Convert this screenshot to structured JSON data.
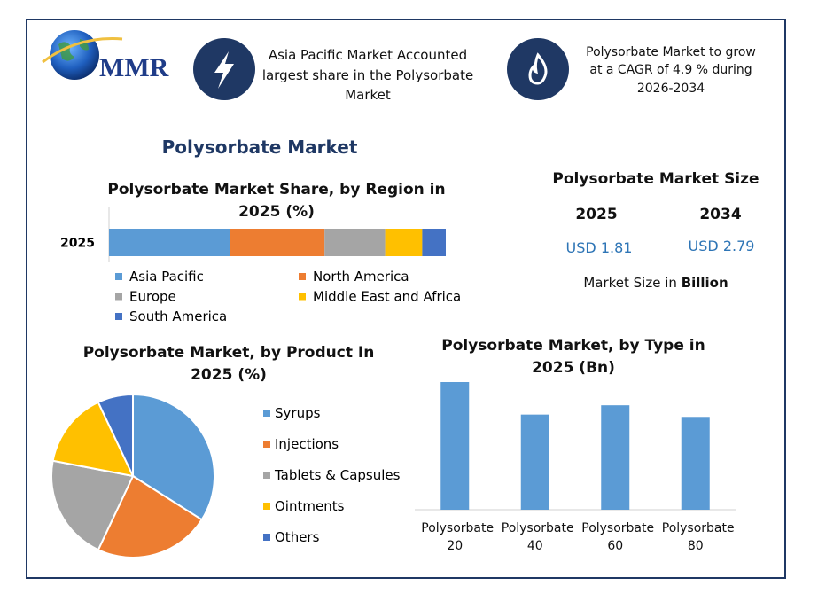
{
  "header": {
    "logo": "MMR",
    "cards": [
      {
        "text": "Asia Pacific Market Accounted largest share in the Polysorbate Market"
      },
      {
        "text": "Polysorbate Market to grow at a CAGR of 4.9 % during 2026-2034"
      }
    ]
  },
  "main_title": "Polysorbate Market",
  "market_size": {
    "title": "Polysorbate Market Size",
    "years": [
      "2025",
      "2034"
    ],
    "values": [
      "USD 1.81",
      "USD 2.79"
    ],
    "note_prefix": "Market Size in",
    "note_unit": "Billion"
  },
  "chart_data": [
    {
      "type": "stacked_bar",
      "title": "Polysorbate Market Share, by Region in 2025 (%)",
      "categories": [
        "2025"
      ],
      "legend": "bottom",
      "series": [
        {
          "name": "Asia Pacific",
          "color": "#5b9bd5",
          "values": [
            36
          ]
        },
        {
          "name": "North America",
          "color": "#ed7d31",
          "values": [
            28
          ]
        },
        {
          "name": "Europe",
          "color": "#a5a5a5",
          "values": [
            18
          ]
        },
        {
          "name": "Middle East and Africa",
          "color": "#ffc000",
          "values": [
            11
          ]
        },
        {
          "name": "South America",
          "color": "#4472c4",
          "values": [
            7
          ]
        }
      ]
    },
    {
      "type": "pie",
      "title": "Polysorbate Market, by Product In 2025 (%)",
      "categories": [
        "Syrups",
        "Injections",
        "Tablets & Capsules",
        "Ointments",
        "Others"
      ],
      "values": [
        34,
        23,
        21,
        15,
        7
      ],
      "colors": [
        "#5b9bd5",
        "#ed7d31",
        "#a5a5a5",
        "#ffc000",
        "#4472c4"
      ],
      "legend": "right"
    },
    {
      "type": "bar",
      "title": "Polysorbate Market, by Type in 2025 (Bn)",
      "categories": [
        "Polysorbate 20",
        "Polysorbate 40",
        "Polysorbate 60",
        "Polysorbate 80"
      ],
      "values": [
        0.55,
        0.41,
        0.45,
        0.4
      ],
      "color": "#5b9bd5"
    }
  ]
}
